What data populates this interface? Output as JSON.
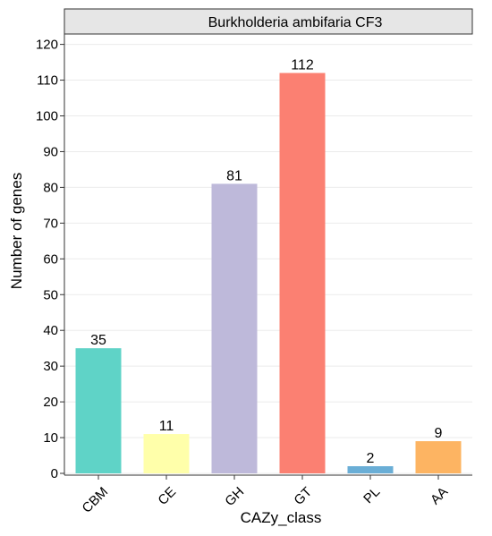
{
  "chart_data": {
    "type": "bar",
    "title": "Burkholderia ambifaria CF3",
    "xlabel": "CAZy_class",
    "ylabel": "Number of genes",
    "categories": [
      "CBM",
      "CE",
      "GH",
      "GT",
      "PL",
      "AA"
    ],
    "values": [
      35,
      11,
      81,
      112,
      2,
      9
    ],
    "data_labels": [
      "35",
      "11",
      "81",
      "112",
      "2",
      "9"
    ],
    "colors": [
      "#5fd3c7",
      "#ffffaa",
      "#beb9da",
      "#fb8072",
      "#6aaed6",
      "#fdb462"
    ],
    "ylim": [
      0,
      123
    ],
    "yticks": [
      0,
      10,
      20,
      30,
      40,
      50,
      60,
      70,
      80,
      90,
      100,
      110,
      120
    ],
    "ytick_labels": [
      "0",
      "10",
      "20",
      "30",
      "40",
      "50",
      "60",
      "70",
      "80",
      "90",
      "100",
      "110",
      "120"
    ],
    "grid": true,
    "legend": "none",
    "facet_strip": true
  }
}
